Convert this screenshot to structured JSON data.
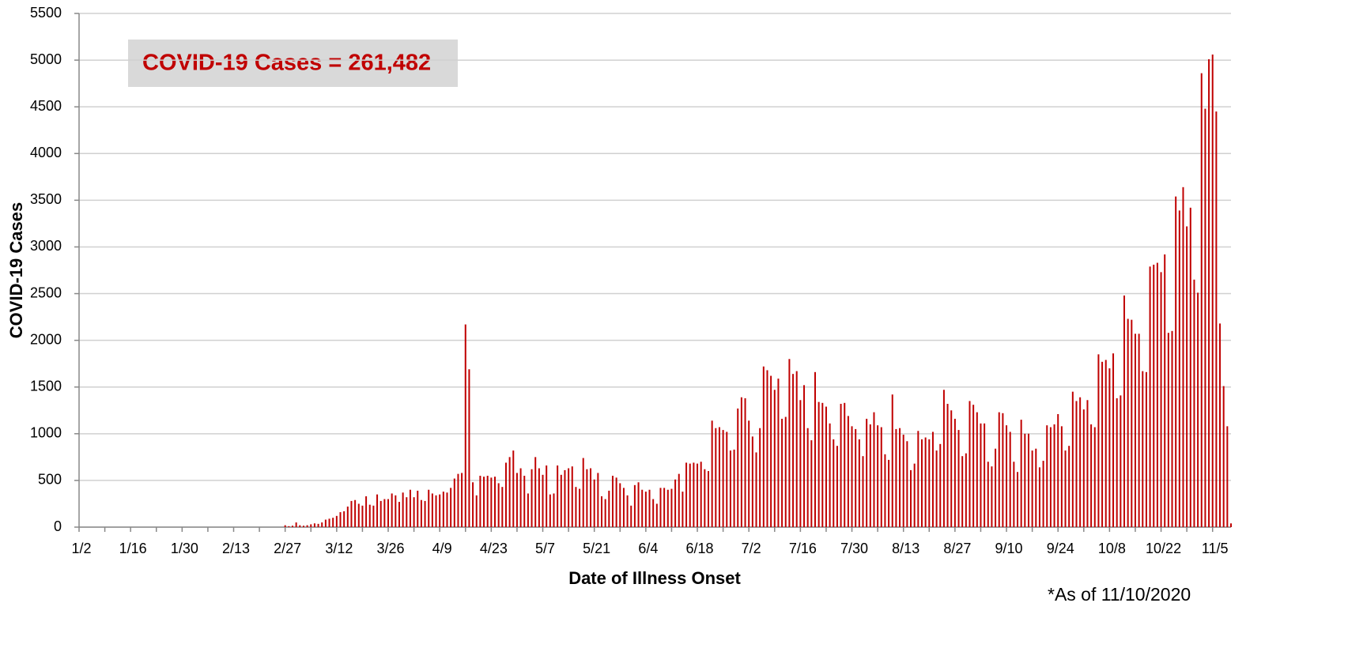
{
  "chart_data": {
    "type": "bar",
    "annotation": "COVID-19 Cases = 261,482",
    "footnote": "*As of 11/10/2020",
    "y_label": "COVID-19 Cases",
    "x_label": "Date of Illness Onset",
    "color": "#c00000",
    "grid": true,
    "ylim": [
      0,
      5500
    ],
    "yticks": [
      0,
      500,
      1000,
      1500,
      2000,
      2500,
      3000,
      3500,
      4000,
      4500,
      5000,
      5500
    ],
    "categories": [
      "1/2",
      null,
      null,
      null,
      null,
      null,
      null,
      null,
      null,
      null,
      null,
      null,
      null,
      null,
      "1/16",
      null,
      null,
      null,
      null,
      null,
      null,
      null,
      null,
      null,
      null,
      null,
      null,
      null,
      "1/30",
      null,
      null,
      null,
      null,
      null,
      null,
      null,
      null,
      null,
      null,
      null,
      null,
      null,
      "2/13",
      null,
      null,
      null,
      null,
      null,
      null,
      null,
      null,
      null,
      null,
      null,
      null,
      null,
      "2/27",
      null,
      null,
      null,
      null,
      null,
      null,
      null,
      null,
      null,
      null,
      null,
      null,
      null,
      "3/12",
      null,
      null,
      null,
      null,
      null,
      null,
      null,
      null,
      null,
      null,
      null,
      null,
      null,
      "3/26",
      null,
      null,
      null,
      null,
      null,
      null,
      null,
      null,
      null,
      null,
      null,
      null,
      null,
      "4/9",
      null,
      null,
      null,
      null,
      null,
      null,
      null,
      null,
      null,
      null,
      null,
      null,
      null,
      "4/23",
      null,
      null,
      null,
      null,
      null,
      null,
      null,
      null,
      null,
      null,
      null,
      null,
      null,
      "5/7",
      null,
      null,
      null,
      null,
      null,
      null,
      null,
      null,
      null,
      null,
      null,
      null,
      null,
      "5/21",
      null,
      null,
      null,
      null,
      null,
      null,
      null,
      null,
      null,
      null,
      null,
      null,
      null,
      "6/4",
      null,
      null,
      null,
      null,
      null,
      null,
      null,
      null,
      null,
      null,
      null,
      null,
      null,
      "6/18",
      null,
      null,
      null,
      null,
      null,
      null,
      null,
      null,
      null,
      null,
      null,
      null,
      null,
      "7/2",
      null,
      null,
      null,
      null,
      null,
      null,
      null,
      null,
      null,
      null,
      null,
      null,
      null,
      "7/16",
      null,
      null,
      null,
      null,
      null,
      null,
      null,
      null,
      null,
      null,
      null,
      null,
      null,
      "7/30",
      null,
      null,
      null,
      null,
      null,
      null,
      null,
      null,
      null,
      null,
      null,
      null,
      null,
      "8/13",
      null,
      null,
      null,
      null,
      null,
      null,
      null,
      null,
      null,
      null,
      null,
      null,
      null,
      "8/27",
      null,
      null,
      null,
      null,
      null,
      null,
      null,
      null,
      null,
      null,
      null,
      null,
      null,
      "9/10",
      null,
      null,
      null,
      null,
      null,
      null,
      null,
      null,
      null,
      null,
      null,
      null,
      null,
      "9/24",
      null,
      null,
      null,
      null,
      null,
      null,
      null,
      null,
      null,
      null,
      null,
      null,
      null,
      "10/8",
      null,
      null,
      null,
      null,
      null,
      null,
      null,
      null,
      null,
      null,
      null,
      null,
      null,
      "10/22",
      null,
      null,
      null,
      null,
      null,
      null,
      null,
      null,
      null,
      null,
      null,
      null,
      null,
      "11/5",
      null,
      null,
      null,
      null,
      null
    ],
    "values": [
      0,
      0,
      0,
      0,
      0,
      0,
      0,
      0,
      0,
      0,
      0,
      0,
      0,
      0,
      0,
      0,
      0,
      0,
      0,
      0,
      0,
      0,
      0,
      0,
      0,
      0,
      0,
      0,
      0,
      0,
      0,
      0,
      0,
      0,
      0,
      0,
      0,
      0,
      0,
      0,
      0,
      0,
      0,
      0,
      0,
      0,
      0,
      0,
      0,
      0,
      0,
      0,
      0,
      0,
      0,
      0,
      20,
      10,
      15,
      50,
      20,
      15,
      20,
      30,
      40,
      35,
      50,
      80,
      90,
      100,
      120,
      160,
      170,
      220,
      280,
      290,
      250,
      230,
      330,
      240,
      230,
      350,
      280,
      300,
      300,
      360,
      340,
      270,
      370,
      320,
      400,
      320,
      390,
      290,
      280,
      400,
      360,
      340,
      350,
      380,
      370,
      420,
      520,
      570,
      580,
      2170,
      1690,
      480,
      340,
      550,
      540,
      550,
      530,
      540,
      470,
      430,
      690,
      750,
      820,
      580,
      630,
      550,
      360,
      620,
      750,
      630,
      560,
      660,
      350,
      360,
      660,
      560,
      610,
      630,
      650,
      430,
      410,
      740,
      620,
      630,
      510,
      580,
      330,
      300,
      390,
      550,
      530,
      470,
      420,
      340,
      230,
      450,
      480,
      400,
      380,
      400,
      300,
      250,
      420,
      420,
      400,
      410,
      510,
      570,
      380,
      690,
      680,
      690,
      680,
      700,
      620,
      600,
      1140,
      1060,
      1070,
      1040,
      1020,
      820,
      830,
      1270,
      1390,
      1380,
      1140,
      970,
      800,
      1060,
      1720,
      1680,
      1620,
      1470,
      1590,
      1160,
      1180,
      1800,
      1640,
      1670,
      1360,
      1520,
      1060,
      930,
      1660,
      1340,
      1330,
      1290,
      1110,
      940,
      870,
      1320,
      1330,
      1190,
      1080,
      1050,
      940,
      760,
      1160,
      1100,
      1230,
      1090,
      1070,
      780,
      720,
      1420,
      1050,
      1060,
      990,
      920,
      610,
      680,
      1030,
      940,
      960,
      940,
      1020,
      820,
      890,
      1470,
      1320,
      1250,
      1160,
      1040,
      760,
      790,
      1350,
      1310,
      1230,
      1110,
      1110,
      700,
      650,
      840,
      1230,
      1220,
      1090,
      1020,
      700,
      590,
      1150,
      1000,
      1000,
      820,
      840,
      640,
      710,
      1090,
      1070,
      1100,
      1210,
      1080,
      820,
      870,
      1450,
      1350,
      1390,
      1260,
      1360,
      1100,
      1070,
      1850,
      1770,
      1790,
      1700,
      1860,
      1380,
      1410,
      2480,
      2230,
      2220,
      2070,
      2070,
      1670,
      1660,
      2790,
      2810,
      2830,
      2730,
      2920,
      2080,
      2100,
      3540,
      3390,
      3640,
      3220,
      3420,
      2650,
      2510,
      4860,
      4480,
      5010,
      5060,
      4450,
      2180,
      1510,
      1080,
      40
    ]
  }
}
